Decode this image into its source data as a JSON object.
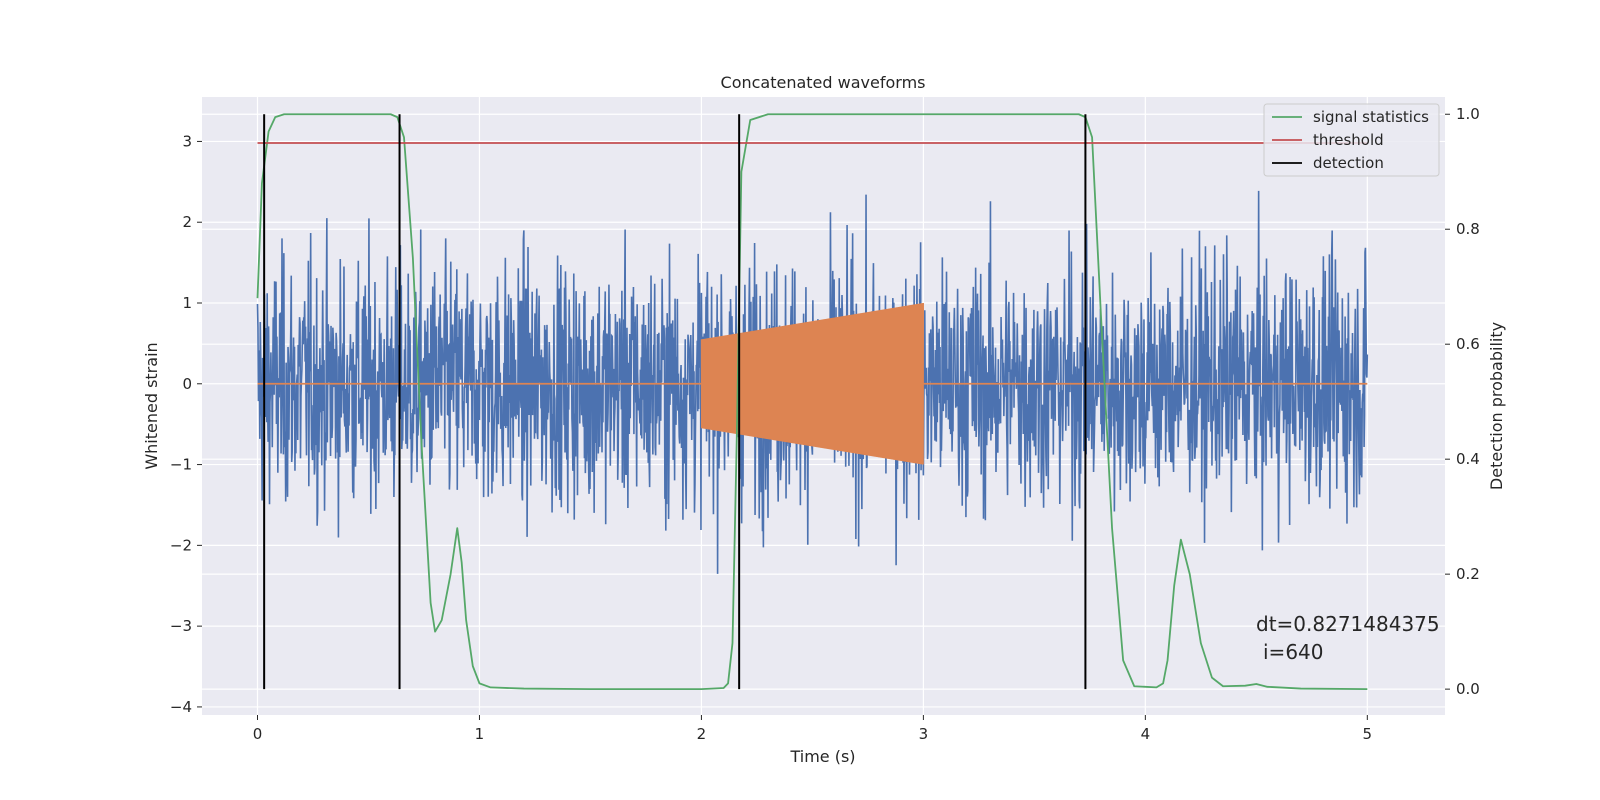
{
  "chart_data": {
    "type": "line",
    "title": "Concatenated waveforms",
    "xlabel": "Time (s)",
    "ylabel": "Whitened strain",
    "y2label": "Detection probability",
    "xlim": [
      -0.25,
      5.35
    ],
    "ylim": [
      -4.1,
      3.55
    ],
    "y2lim": [
      -0.045,
      1.03
    ],
    "x_ticks": [
      0,
      1,
      2,
      3,
      4,
      5
    ],
    "y_ticks": [
      -4,
      -3,
      -2,
      -1,
      0,
      1,
      2,
      3
    ],
    "y2_ticks": [
      0.0,
      0.2,
      0.4,
      0.6,
      0.8,
      1.0
    ],
    "x_tick_labels": [
      "0",
      "1",
      "2",
      "3",
      "4",
      "5"
    ],
    "y_tick_labels": [
      "−4",
      "−3",
      "−2",
      "−1",
      "0",
      "1",
      "2",
      "3"
    ],
    "y2_tick_labels": [
      "0.0",
      "0.2",
      "0.4",
      "0.6",
      "0.8",
      "1.0"
    ],
    "grid": true,
    "legend_position": "top-right",
    "noise": {
      "t_start": 0,
      "t_end": 5,
      "color": "#4c72b0"
    },
    "injection": {
      "t_start": 2.0,
      "t_end": 3.0,
      "amp_start": 0.55,
      "amp_end": 1.0,
      "color": "#dd8452"
    },
    "series": [
      {
        "name": "signal statistics",
        "color": "#55a868",
        "axis": "right",
        "x": [
          0.0,
          0.02,
          0.05,
          0.08,
          0.12,
          0.2,
          0.4,
          0.6,
          0.63,
          0.66,
          0.7,
          0.74,
          0.78,
          0.8,
          0.83,
          0.87,
          0.9,
          0.92,
          0.94,
          0.97,
          1.0,
          1.05,
          1.2,
          1.5,
          2.0,
          2.1,
          2.12,
          2.14,
          2.16,
          2.18,
          2.22,
          2.3,
          2.5,
          3.0,
          3.5,
          3.7,
          3.73,
          3.76,
          3.8,
          3.85,
          3.9,
          3.95,
          4.05,
          4.08,
          4.1,
          4.13,
          4.16,
          4.2,
          4.25,
          4.3,
          4.35,
          4.45,
          4.5,
          4.55,
          4.7,
          5.0
        ],
        "values": [
          0.68,
          0.88,
          0.97,
          0.995,
          1.0,
          1.0,
          1.0,
          1.0,
          0.995,
          0.96,
          0.75,
          0.42,
          0.15,
          0.1,
          0.12,
          0.2,
          0.28,
          0.22,
          0.12,
          0.04,
          0.01,
          0.003,
          0.001,
          0.0,
          0.0,
          0.002,
          0.01,
          0.08,
          0.45,
          0.9,
          0.99,
          1.0,
          1.0,
          1.0,
          1.0,
          1.0,
          0.995,
          0.96,
          0.65,
          0.28,
          0.05,
          0.005,
          0.003,
          0.01,
          0.05,
          0.18,
          0.26,
          0.2,
          0.08,
          0.02,
          0.005,
          0.006,
          0.009,
          0.004,
          0.001,
          0.0
        ]
      },
      {
        "name": "threshold",
        "color": "#c44e52",
        "axis": "right",
        "x": [
          0,
          5
        ],
        "values": [
          0.95,
          0.95
        ]
      },
      {
        "name": "detection",
        "color": "#000000",
        "axis": "right",
        "type": "vlines",
        "x": [
          0.03,
          0.64,
          2.17,
          3.73
        ],
        "ymin": 0.0,
        "ymax": 1.0
      }
    ],
    "annotations": [
      "dt=0.8271484375",
      "i=640"
    ]
  }
}
